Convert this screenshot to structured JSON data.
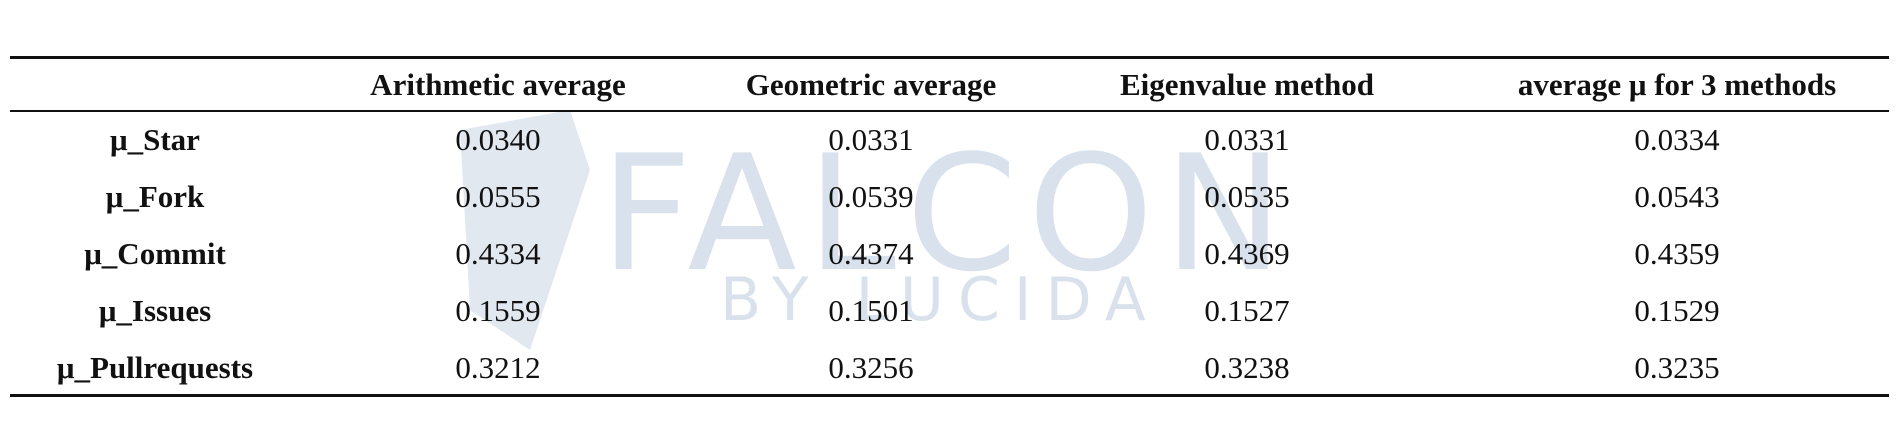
{
  "table": {
    "header": [
      "",
      "Arithmetic average",
      "Geometric average",
      "Eigenvalue method",
      "average μ for 3 methods"
    ],
    "rows": [
      [
        "μ_Star",
        "0.0340",
        "0.0331",
        "0.0331",
        "0.0334"
      ],
      [
        "μ_Fork",
        "0.0555",
        "0.0539",
        "0.0535",
        "0.0543"
      ],
      [
        "μ_Commit",
        "0.4334",
        "0.4374",
        "0.4369",
        "0.4359"
      ],
      [
        "μ_Issues",
        "0.1559",
        "0.1501",
        "0.1527",
        "0.1529"
      ],
      [
        "μ_Pullrequests",
        "0.3212",
        "0.3256",
        "0.3238",
        "0.3235"
      ]
    ]
  },
  "watermark": [
    "FALCON",
    "BY LUCIDA"
  ]
}
